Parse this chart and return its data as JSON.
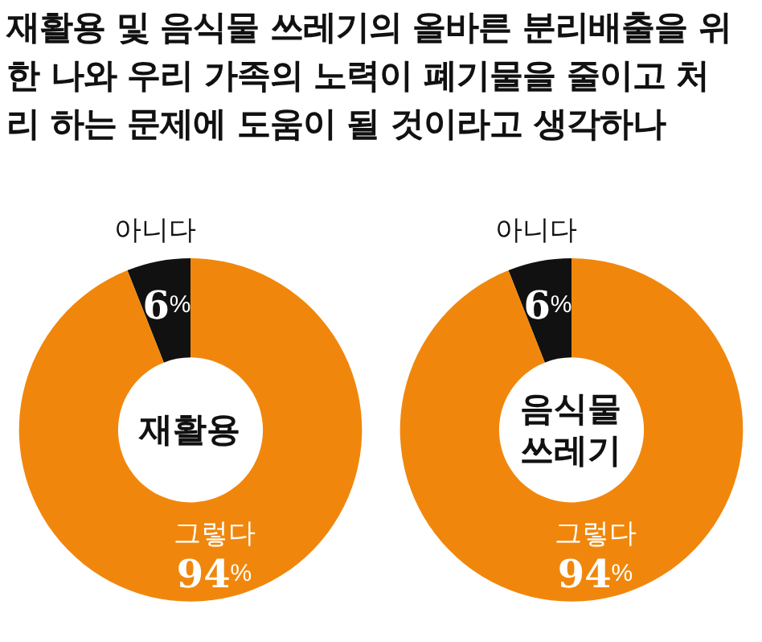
{
  "chart_data": [
    {
      "type": "donut",
      "title": "재활용 및 음식물 쓰레기의 올바른 분리배출을 위한 나와 우리 가족의 노력이 폐기물을 줄이고 처리 하는 문제에 도움이 될 것이라고 생각하나",
      "annotations": [
        "재활용"
      ],
      "categories": [
        "아니다",
        "그렇다"
      ],
      "values": [
        6,
        94
      ],
      "colors": [
        "#111111",
        "#f0870c"
      ],
      "value_labels": [
        "6%",
        "94%"
      ]
    },
    {
      "type": "donut",
      "annotations": [
        "음식물 쓰레기"
      ],
      "categories": [
        "아니다",
        "그렇다"
      ],
      "values": [
        6,
        94
      ],
      "colors": [
        "#111111",
        "#f0870c"
      ],
      "value_labels": [
        "6%",
        "94%"
      ]
    }
  ]
}
